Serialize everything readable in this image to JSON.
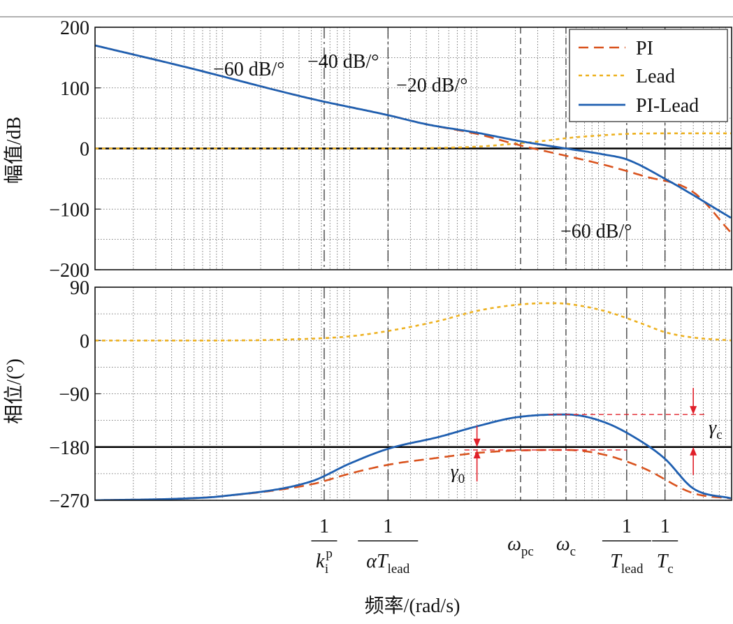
{
  "figure": {
    "xlabel": "频率/(rad/s)"
  },
  "chart_data": [
    {
      "type": "line",
      "title": "",
      "panel": "magnitude",
      "ylabel": "幅值/dB",
      "ylim": [
        -200,
        200
      ],
      "yticks": [
        "200",
        "100",
        "0",
        "−100",
        "−200"
      ],
      "ytick_values": [
        200,
        100,
        0,
        -100,
        -200
      ],
      "xscale": "log",
      "xlim": [
        0.0001,
        10
      ],
      "grid": true,
      "legend": [
        "PI",
        "Lead",
        "PI-Lead"
      ],
      "legend_position": "top-right",
      "reference_line": 0,
      "series": [
        {
          "name": "PI",
          "x": [
            0.0001,
            0.0005,
            0.005,
            0.02,
            0.04,
            0.1,
            0.22,
            0.5,
            1,
            2,
            5,
            10
          ],
          "values": [
            170,
            135,
            82,
            55,
            40,
            24,
            5,
            -12,
            -27,
            -45,
            -72,
            -140
          ]
        },
        {
          "name": "Lead",
          "x": [
            0.0001,
            0.005,
            0.02,
            0.05,
            0.1,
            0.2,
            0.35,
            0.5,
            1,
            1.5,
            3,
            10
          ],
          "values": [
            0,
            0,
            0,
            1,
            3,
            8,
            13,
            17,
            22,
            24,
            25,
            25
          ]
        },
        {
          "name": "PI-Lead",
          "x": [
            0.0001,
            0.0005,
            0.005,
            0.02,
            0.04,
            0.1,
            0.22,
            0.5,
            1,
            1.5,
            3,
            10
          ],
          "values": [
            170,
            135,
            82,
            55,
            40,
            26,
            12,
            0,
            -10,
            -18,
            -50,
            -115
          ]
        }
      ],
      "vlines": [
        {
          "x": 0.00631,
          "style": "dashdot"
        },
        {
          "x": 0.02,
          "style": "dashdot"
        },
        {
          "x": 0.22,
          "style": "dash"
        },
        {
          "x": 0.5,
          "style": "dash"
        },
        {
          "x": 1.5,
          "style": "dashdot"
        },
        {
          "x": 3.0,
          "style": "dashdot"
        }
      ],
      "annotations": [
        "−60 dB/°",
        "−40 dB/°",
        "−20 dB/°",
        "−60 dB/°"
      ]
    },
    {
      "type": "line",
      "title": "",
      "panel": "phase",
      "ylabel": "相位/(°)",
      "ylim": [
        -270,
        90
      ],
      "yticks": [
        "90",
        "0",
        "−90",
        "−180",
        "−270"
      ],
      "ytick_values": [
        90,
        0,
        -90,
        -180,
        -270
      ],
      "xscale": "log",
      "xlim": [
        0.0001,
        10
      ],
      "grid": true,
      "reference_line": -180,
      "series": [
        {
          "name": "PI",
          "x": [
            0.0001,
            0.0005,
            0.001,
            0.005,
            0.01,
            0.02,
            0.05,
            0.1,
            0.2,
            0.5,
            1,
            2,
            5,
            10
          ],
          "values": [
            -270,
            -267,
            -263,
            -243,
            -225,
            -210,
            -198,
            -190,
            -186,
            -185,
            -193,
            -215,
            -258,
            -267
          ]
        },
        {
          "name": "Lead",
          "x": [
            0.0001,
            0.001,
            0.005,
            0.01,
            0.02,
            0.05,
            0.1,
            0.2,
            0.35,
            0.5,
            1,
            2,
            3,
            5,
            10
          ],
          "values": [
            0,
            0,
            3,
            7,
            16,
            33,
            50,
            60,
            63,
            62,
            50,
            28,
            14,
            5,
            0
          ]
        },
        {
          "name": "PI-Lead",
          "x": [
            0.0001,
            0.0005,
            0.001,
            0.005,
            0.01,
            0.02,
            0.05,
            0.1,
            0.2,
            0.5,
            1,
            2,
            3,
            5,
            10
          ],
          "values": [
            -270,
            -267,
            -263,
            -238,
            -208,
            -183,
            -163,
            -145,
            -130,
            -125,
            -138,
            -172,
            -200,
            -250,
            -267
          ]
        }
      ],
      "vlines": [
        {
          "x": 0.00631,
          "style": "dashdot"
        },
        {
          "x": 0.02,
          "style": "dashdot"
        },
        {
          "x": 0.22,
          "style": "dash"
        },
        {
          "x": 0.5,
          "style": "dash"
        },
        {
          "x": 1.5,
          "style": "dashdot"
        },
        {
          "x": 3.0,
          "style": "dashdot"
        }
      ],
      "margins": [
        {
          "symbol": "γ",
          "sub": "0",
          "from": -185,
          "to": -180,
          "x": 0.1
        },
        {
          "symbol": "γ",
          "sub": "c",
          "from": -125,
          "to": -180,
          "x": 5
        }
      ]
    }
  ],
  "x_markers": [
    {
      "top": "1",
      "main": "k",
      "sup": "p",
      "sub": "i",
      "x": 0.00631
    },
    {
      "top": "1",
      "main": "αT",
      "sub": "lead",
      "x": 0.02
    },
    {
      "main": "ω",
      "sub": "pc",
      "x": 0.22
    },
    {
      "main": "ω",
      "sub": "c",
      "x": 0.5
    },
    {
      "top": "1",
      "main": "T",
      "sub": "lead",
      "x": 1.5
    },
    {
      "top": "1",
      "main": "T",
      "sub": "c",
      "x": 3.0
    }
  ],
  "colors": {
    "PI": "#d9531e",
    "Lead": "#edb120",
    "PI-Lead": "#1f5fb0",
    "annotation": "#e0202a",
    "grid": "#555555"
  }
}
